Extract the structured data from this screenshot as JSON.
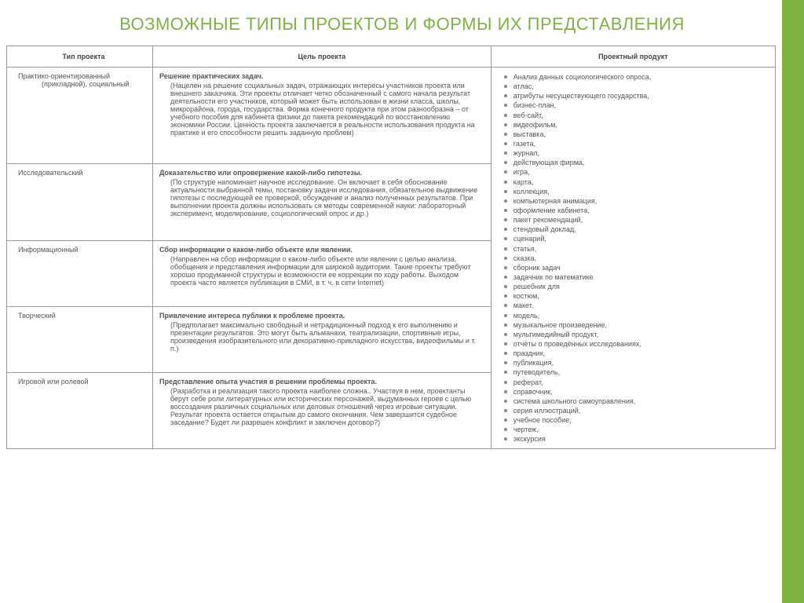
{
  "accent_color": "#7cb342",
  "title": "ВОЗМОЖНЫЕ ТИПЫ ПРОЕКТОВ И ФОРМЫ ИХ ПРЕДСТАВЛЕНИЯ",
  "headers": {
    "type": "Тип проекта",
    "goal": "Цель проекта",
    "product": "Проектный продукт"
  },
  "rows": [
    {
      "type_line1": "Практико-ориентированный",
      "type_line2": "(прикладной), социальный",
      "goal_head": "Решение практических задач.",
      "goal_body": "(Нацелен на решение социальных задач, отражающих интересы участников проекта или внешнего заказчика. Эти проекты отличает четко обозначенный с самого начала результат деятельности его участников, который может быть использован в жизни класса, школы, микрорайона, города, государства. Форма конечного продукта при этом разнообразна – от учебного пособия для кабинета физики до пакета рекомендаций по восстановлению экономики России. Ценность проекта заключается в реальности использования продукта на практике и его способности решить заданную проблем)"
    },
    {
      "type_line1": "Исследовательский",
      "type_line2": "",
      "goal_head": "Доказательство или опровержение какой-либо гипотезы.",
      "goal_body": "(По структуре напоминает научное исследование. Он включает в себя обоснование актуальности выбранной темы, постановку задачи исследования, обязательное выдвижение гипотезы с последующей ее проверкой, обсуждение и анализ полученных результатов. При выполнении проекта должны использовать ся методы современной науки: лабораторный эксперимент, моделирование, социологический опрос и др.)"
    },
    {
      "type_line1": "Информационный",
      "type_line2": "",
      "goal_head": "Сбор информации о каком-либо объекте или явлении.",
      "goal_body": "(Направлен на сбор информации о каком-либо объекте или явлении с целью анализа, обобщения и представления информации для широкой аудитории. Такие проекты требуют хорошо продуманной структуры и возможности ее коррекции по ходу работы. Выходом проекта часто является публикация в СМИ, в т. ч. в сети Internet)"
    },
    {
      "type_line1": "Творческий",
      "type_line2": "",
      "goal_head": "Привлечение интереса публики к проблеме проекта.",
      "goal_body": "(Предполагает максимально свободный и нетрадиционный подход к его выполнению и презентации результатов. Это могут быть альманахи, театрализации, спортивные игры, произведения изобразительного или декоративно-прикладного искусства, видеофильмы и т. п.)"
    },
    {
      "type_line1": "Игровой или ролевой",
      "type_line2": "",
      "goal_head": "Представление опыта участия в решении проблемы проекта.",
      "goal_body": "(Разработка и реализация такого проекта наиболее сложна.. Участвуя в нем, проектанты берут себе роли литературных или исторических персонажей, выдуманных героев с целью воссоздания различных социальных или деловых отношений через игровые ситуации. Результат проекта остается открытым до самого окончания. Чем завершится судебное заседание? Будет ли разрешен конфликт и заключен договор?)"
    }
  ],
  "products": [
    "Анализ данных социологического опроса,",
    "атлас,",
    "атрибуты несуществующего государства,",
    "бизнес-план,",
    "веб-сайт,",
    "видеофильм,",
    "выставка,",
    "газета,",
    "журнал,",
    "действующая фирма,",
    "игра,",
    "карта,",
    "коллекция,",
    "компьютерная анимация,",
    "оформление кабинета,",
    "пакет рекомендаций,",
    "стендовый доклад,",
    "сценарий,",
    "статья,",
    "сказка,",
    "сборник задач",
    " задачник по математике",
    "решебник для",
    "костюм,",
    "макет,",
    "модель,",
    "музыкальное произведение,",
    " мультимедийный продукт,",
    "отчёты о проведённых исследованиях,",
    "праздник,",
    "публикация,",
    "путеводитель,",
    "реферат,",
    " справочник,",
    "система школьного самоуправления,",
    " серия иллюстраций,",
    "учебное пособие,",
    "чертеж,",
    "экскурсия"
  ]
}
